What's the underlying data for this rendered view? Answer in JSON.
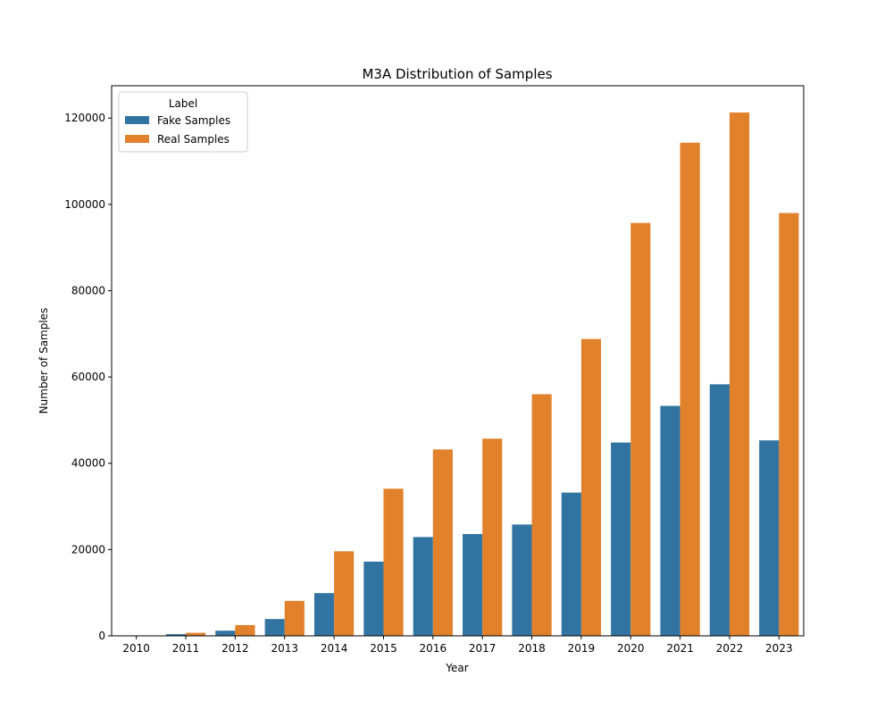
{
  "chart_data": {
    "type": "bar",
    "title": "M3A Distribution of Samples",
    "xlabel": "Year",
    "ylabel": "Number of Samples",
    "categories": [
      "2010",
      "2011",
      "2012",
      "2013",
      "2014",
      "2015",
      "2016",
      "2017",
      "2018",
      "2019",
      "2020",
      "2021",
      "2022",
      "2023"
    ],
    "series": [
      {
        "name": "Fake Samples",
        "color": "#3274a1",
        "values": [
          0,
          400,
          1200,
          3900,
          9900,
          17200,
          22900,
          23600,
          25800,
          33200,
          44800,
          53300,
          58300,
          45300
        ]
      },
      {
        "name": "Real Samples",
        "color": "#e1812c",
        "values": [
          0,
          700,
          2500,
          8100,
          19600,
          34100,
          43200,
          45700,
          56000,
          68800,
          95700,
          114300,
          121300,
          98000
        ]
      }
    ],
    "ylim": [
      0,
      127500
    ],
    "yticks": [
      0,
      20000,
      40000,
      60000,
      80000,
      100000,
      120000
    ],
    "ytick_labels": [
      "0",
      "20000",
      "40000",
      "60000",
      "80000",
      "100000",
      "120000"
    ],
    "legend": {
      "title": "Label",
      "position": "top-left"
    },
    "grid": false
  }
}
